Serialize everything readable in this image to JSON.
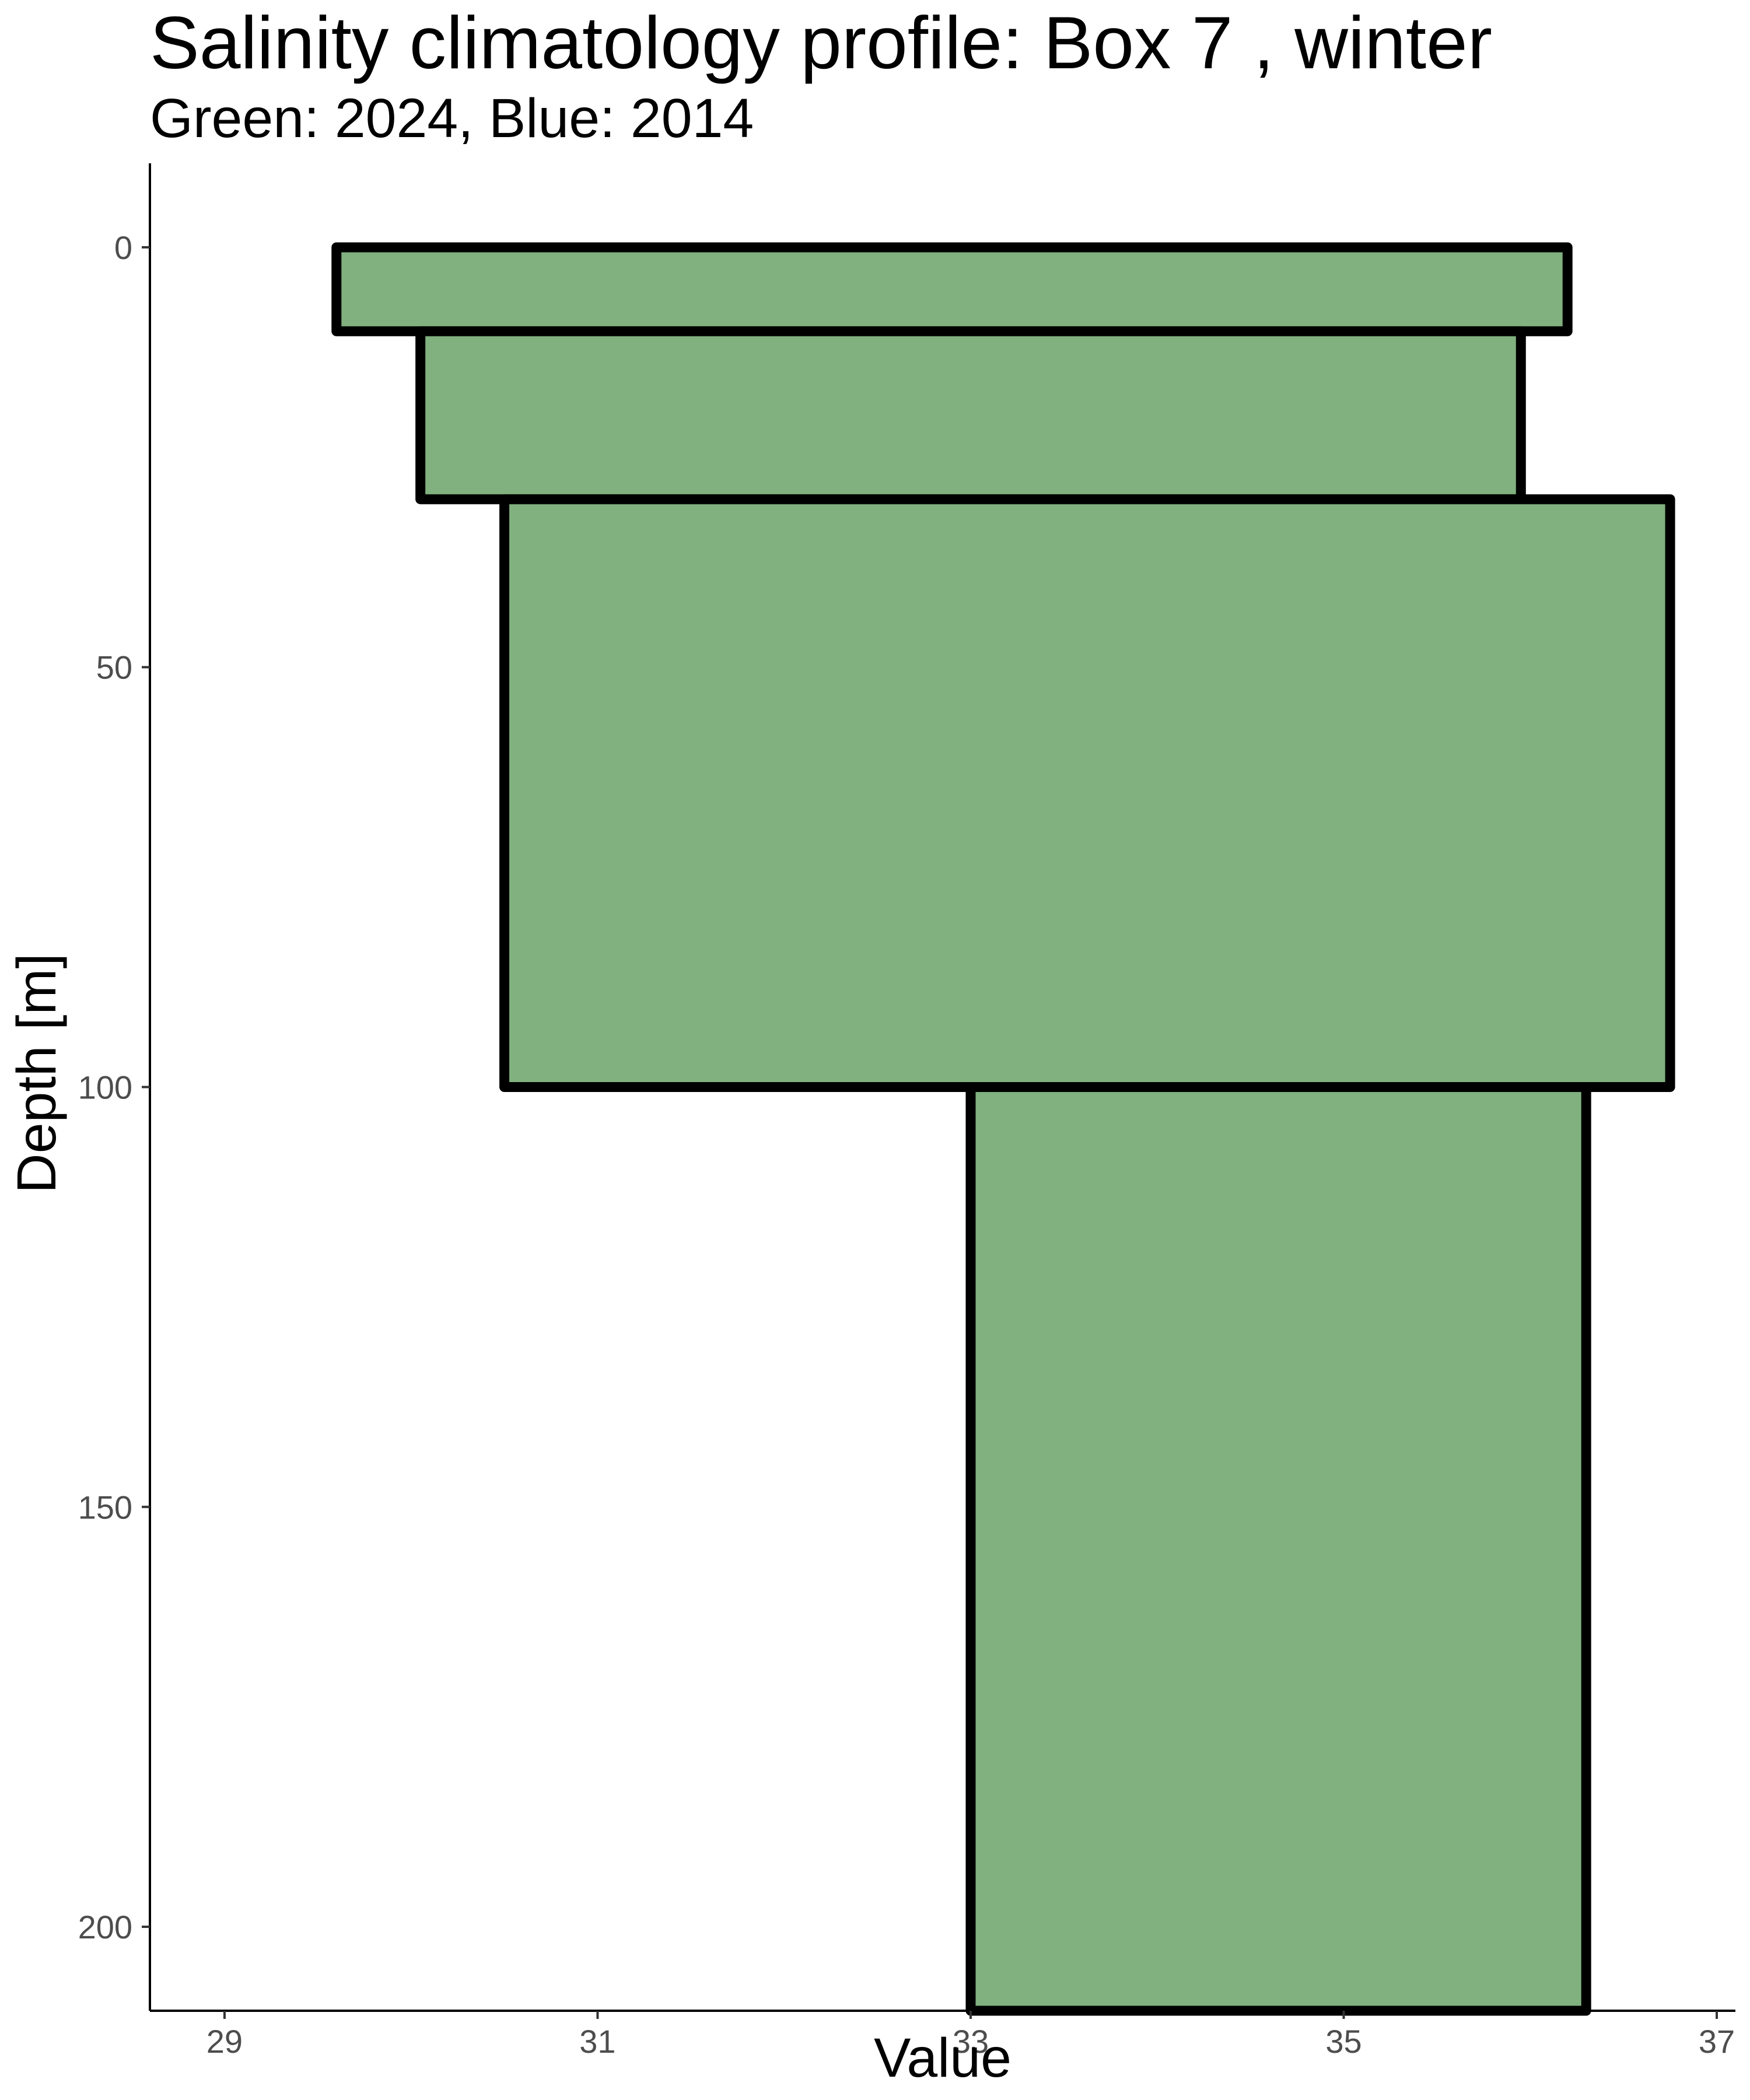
{
  "chart_data": {
    "type": "bar",
    "orientation": "horizontal-step-profile",
    "title": "Salinity climatology profile: Box 7 , winter",
    "subtitle": "Green: 2024, Blue: 2014",
    "xlabel": "Value",
    "ylabel": "Depth [m]",
    "xlim": [
      28.6,
      37.1
    ],
    "ylim": [
      210,
      -10
    ],
    "y_reversed": true,
    "x_ticks": [
      29,
      31,
      33,
      35,
      37
    ],
    "y_ticks": [
      0,
      50,
      100,
      150,
      200
    ],
    "grid": false,
    "fill_color": "#80b17f",
    "edge_color": "#000000",
    "series": [
      {
        "layers": [
          {
            "depth_top": 0,
            "depth_bottom": 10,
            "x_min": 29.6,
            "x_max": 36.2
          },
          {
            "depth_top": 10,
            "depth_bottom": 30,
            "x_min": 30.05,
            "x_max": 35.95
          },
          {
            "depth_top": 30,
            "depth_bottom": 100,
            "x_min": 30.5,
            "x_max": 36.75
          },
          {
            "depth_top": 100,
            "depth_bottom": 210,
            "x_min": 33.0,
            "x_max": 36.3
          }
        ]
      }
    ]
  }
}
